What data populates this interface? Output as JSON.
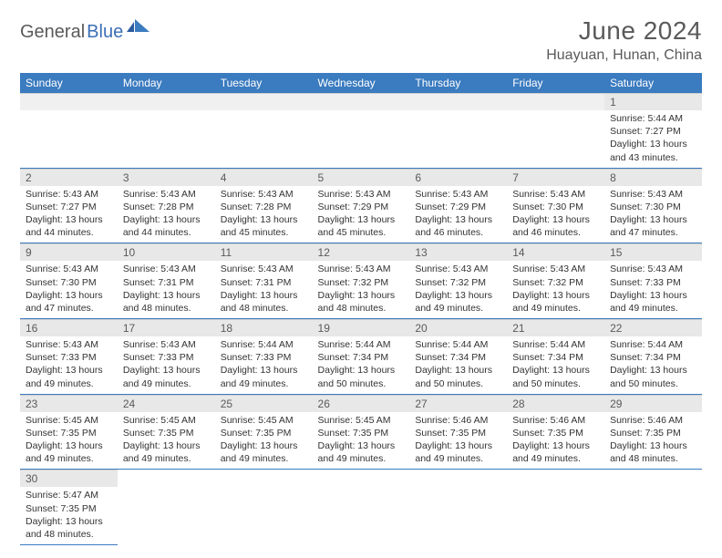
{
  "brand": {
    "word1": "General",
    "word2": "Blue"
  },
  "title": "June 2024",
  "location": "Huayuan, Hunan, China",
  "colors": {
    "header_bg": "#3b7bbf",
    "header_text": "#ffffff",
    "daynum_bg": "#e8e8e8",
    "text_gray": "#5a5a5a",
    "cell_border": "#3b7bbf",
    "brand_blue": "#3b6fb6"
  },
  "day_labels": [
    "Sunday",
    "Monday",
    "Tuesday",
    "Wednesday",
    "Thursday",
    "Friday",
    "Saturday"
  ],
  "weeks": [
    [
      {
        "n": "",
        "lines": []
      },
      {
        "n": "",
        "lines": []
      },
      {
        "n": "",
        "lines": []
      },
      {
        "n": "",
        "lines": []
      },
      {
        "n": "",
        "lines": []
      },
      {
        "n": "",
        "lines": []
      },
      {
        "n": "1",
        "lines": [
          "Sunrise: 5:44 AM",
          "Sunset: 7:27 PM",
          "Daylight: 13 hours",
          "and 43 minutes."
        ]
      }
    ],
    [
      {
        "n": "2",
        "lines": [
          "Sunrise: 5:43 AM",
          "Sunset: 7:27 PM",
          "Daylight: 13 hours",
          "and 44 minutes."
        ]
      },
      {
        "n": "3",
        "lines": [
          "Sunrise: 5:43 AM",
          "Sunset: 7:28 PM",
          "Daylight: 13 hours",
          "and 44 minutes."
        ]
      },
      {
        "n": "4",
        "lines": [
          "Sunrise: 5:43 AM",
          "Sunset: 7:28 PM",
          "Daylight: 13 hours",
          "and 45 minutes."
        ]
      },
      {
        "n": "5",
        "lines": [
          "Sunrise: 5:43 AM",
          "Sunset: 7:29 PM",
          "Daylight: 13 hours",
          "and 45 minutes."
        ]
      },
      {
        "n": "6",
        "lines": [
          "Sunrise: 5:43 AM",
          "Sunset: 7:29 PM",
          "Daylight: 13 hours",
          "and 46 minutes."
        ]
      },
      {
        "n": "7",
        "lines": [
          "Sunrise: 5:43 AM",
          "Sunset: 7:30 PM",
          "Daylight: 13 hours",
          "and 46 minutes."
        ]
      },
      {
        "n": "8",
        "lines": [
          "Sunrise: 5:43 AM",
          "Sunset: 7:30 PM",
          "Daylight: 13 hours",
          "and 47 minutes."
        ]
      }
    ],
    [
      {
        "n": "9",
        "lines": [
          "Sunrise: 5:43 AM",
          "Sunset: 7:30 PM",
          "Daylight: 13 hours",
          "and 47 minutes."
        ]
      },
      {
        "n": "10",
        "lines": [
          "Sunrise: 5:43 AM",
          "Sunset: 7:31 PM",
          "Daylight: 13 hours",
          "and 48 minutes."
        ]
      },
      {
        "n": "11",
        "lines": [
          "Sunrise: 5:43 AM",
          "Sunset: 7:31 PM",
          "Daylight: 13 hours",
          "and 48 minutes."
        ]
      },
      {
        "n": "12",
        "lines": [
          "Sunrise: 5:43 AM",
          "Sunset: 7:32 PM",
          "Daylight: 13 hours",
          "and 48 minutes."
        ]
      },
      {
        "n": "13",
        "lines": [
          "Sunrise: 5:43 AM",
          "Sunset: 7:32 PM",
          "Daylight: 13 hours",
          "and 49 minutes."
        ]
      },
      {
        "n": "14",
        "lines": [
          "Sunrise: 5:43 AM",
          "Sunset: 7:32 PM",
          "Daylight: 13 hours",
          "and 49 minutes."
        ]
      },
      {
        "n": "15",
        "lines": [
          "Sunrise: 5:43 AM",
          "Sunset: 7:33 PM",
          "Daylight: 13 hours",
          "and 49 minutes."
        ]
      }
    ],
    [
      {
        "n": "16",
        "lines": [
          "Sunrise: 5:43 AM",
          "Sunset: 7:33 PM",
          "Daylight: 13 hours",
          "and 49 minutes."
        ]
      },
      {
        "n": "17",
        "lines": [
          "Sunrise: 5:43 AM",
          "Sunset: 7:33 PM",
          "Daylight: 13 hours",
          "and 49 minutes."
        ]
      },
      {
        "n": "18",
        "lines": [
          "Sunrise: 5:44 AM",
          "Sunset: 7:33 PM",
          "Daylight: 13 hours",
          "and 49 minutes."
        ]
      },
      {
        "n": "19",
        "lines": [
          "Sunrise: 5:44 AM",
          "Sunset: 7:34 PM",
          "Daylight: 13 hours",
          "and 50 minutes."
        ]
      },
      {
        "n": "20",
        "lines": [
          "Sunrise: 5:44 AM",
          "Sunset: 7:34 PM",
          "Daylight: 13 hours",
          "and 50 minutes."
        ]
      },
      {
        "n": "21",
        "lines": [
          "Sunrise: 5:44 AM",
          "Sunset: 7:34 PM",
          "Daylight: 13 hours",
          "and 50 minutes."
        ]
      },
      {
        "n": "22",
        "lines": [
          "Sunrise: 5:44 AM",
          "Sunset: 7:34 PM",
          "Daylight: 13 hours",
          "and 50 minutes."
        ]
      }
    ],
    [
      {
        "n": "23",
        "lines": [
          "Sunrise: 5:45 AM",
          "Sunset: 7:35 PM",
          "Daylight: 13 hours",
          "and 49 minutes."
        ]
      },
      {
        "n": "24",
        "lines": [
          "Sunrise: 5:45 AM",
          "Sunset: 7:35 PM",
          "Daylight: 13 hours",
          "and 49 minutes."
        ]
      },
      {
        "n": "25",
        "lines": [
          "Sunrise: 5:45 AM",
          "Sunset: 7:35 PM",
          "Daylight: 13 hours",
          "and 49 minutes."
        ]
      },
      {
        "n": "26",
        "lines": [
          "Sunrise: 5:45 AM",
          "Sunset: 7:35 PM",
          "Daylight: 13 hours",
          "and 49 minutes."
        ]
      },
      {
        "n": "27",
        "lines": [
          "Sunrise: 5:46 AM",
          "Sunset: 7:35 PM",
          "Daylight: 13 hours",
          "and 49 minutes."
        ]
      },
      {
        "n": "28",
        "lines": [
          "Sunrise: 5:46 AM",
          "Sunset: 7:35 PM",
          "Daylight: 13 hours",
          "and 49 minutes."
        ]
      },
      {
        "n": "29",
        "lines": [
          "Sunrise: 5:46 AM",
          "Sunset: 7:35 PM",
          "Daylight: 13 hours",
          "and 48 minutes."
        ]
      }
    ],
    [
      {
        "n": "30",
        "lines": [
          "Sunrise: 5:47 AM",
          "Sunset: 7:35 PM",
          "Daylight: 13 hours",
          "and 48 minutes."
        ]
      },
      {
        "n": "",
        "lines": []
      },
      {
        "n": "",
        "lines": []
      },
      {
        "n": "",
        "lines": []
      },
      {
        "n": "",
        "lines": []
      },
      {
        "n": "",
        "lines": []
      },
      {
        "n": "",
        "lines": []
      }
    ]
  ]
}
